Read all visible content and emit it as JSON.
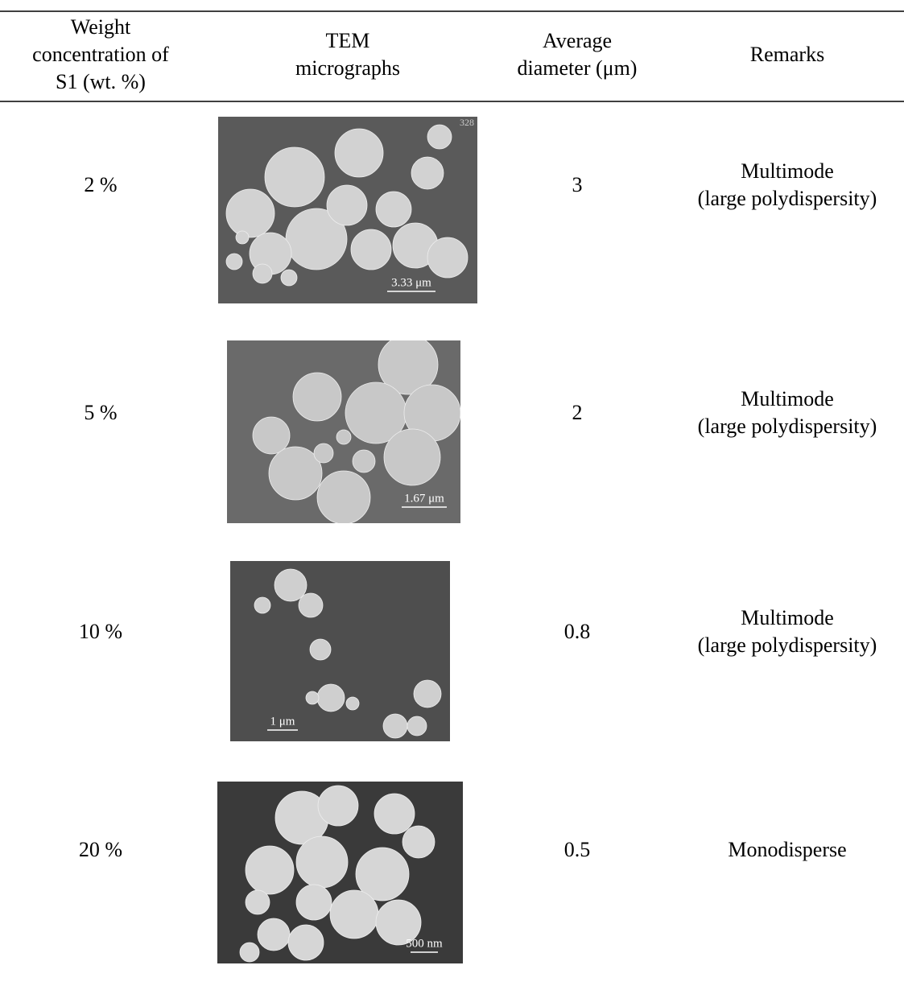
{
  "table": {
    "header": [
      [
        "Weight",
        "concentration of",
        "S1 (wt. %)"
      ],
      [
        "TEM",
        "micrographs"
      ],
      [
        "Average",
        "diameter (μm)"
      ],
      [
        "Remarks"
      ]
    ],
    "rows": [
      {
        "concentration": "2 %",
        "micrograph": {
          "scale": "3.33 μm",
          "code": "328"
        },
        "diameter": 3,
        "remarks": [
          "Multimode",
          "(large polydispersity)"
        ]
      },
      {
        "concentration": "5 %",
        "micrograph": {
          "scale": "1.67 μm"
        },
        "diameter": 2,
        "remarks": [
          "Multimode",
          "(large polydispersity)"
        ]
      },
      {
        "concentration": "10 %",
        "micrograph": {
          "scale": "1 μm"
        },
        "diameter": 0.8,
        "remarks": [
          "Multimode",
          "(large polydispersity)"
        ]
      },
      {
        "concentration": "20 %",
        "micrograph": {
          "scale": "500 nm"
        },
        "diameter": 0.5,
        "remarks": [
          "Monodisperse"
        ]
      }
    ]
  }
}
